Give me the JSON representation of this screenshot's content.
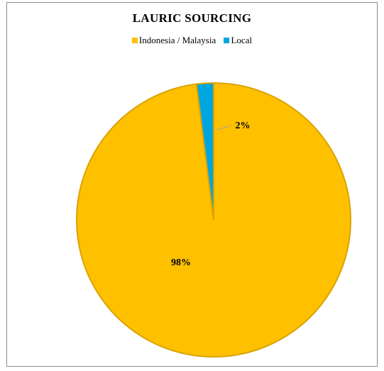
{
  "chart_data": {
    "type": "pie",
    "title": "LAURIC SOURCING",
    "legend_position": "top",
    "series": [
      {
        "name": "Indonesia / Malaysia",
        "value": 98,
        "label": "98%",
        "color": "#ffc000"
      },
      {
        "name": "Local",
        "value": 2,
        "label": "2%",
        "color": "#00a6e0"
      }
    ]
  },
  "colors": {
    "slice_outline": "#d9a300",
    "leader_line": "#a6a6a6",
    "frame_border": "#8c8c8c"
  }
}
